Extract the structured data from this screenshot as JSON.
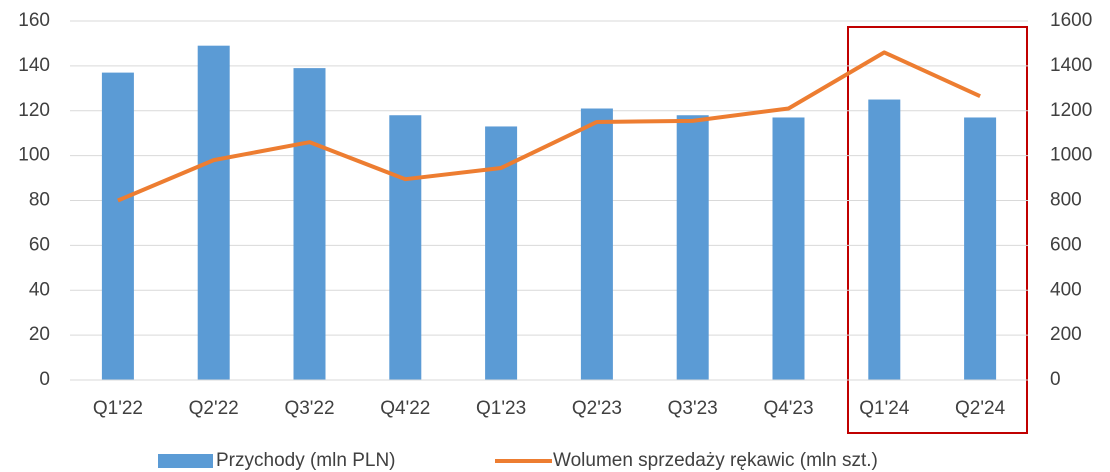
{
  "chart_data": {
    "type": "bar",
    "categories": [
      "Q1'22",
      "Q2'22",
      "Q3'22",
      "Q4'22",
      "Q1'23",
      "Q2'23",
      "Q3'23",
      "Q4'23",
      "Q1'24",
      "Q2'24"
    ],
    "series": [
      {
        "name": "Przychody (mln PLN)",
        "color": "#5b9bd5",
        "type": "bar",
        "values": [
          137,
          149,
          139,
          118,
          113,
          121,
          118,
          117,
          125,
          117
        ]
      },
      {
        "name": "Wolumen sprzedaży rękawic (mln szt.)",
        "color": "#ed7d31",
        "type": "line",
        "axis": "y2",
        "values": [
          800,
          980,
          1060,
          895,
          945,
          1150,
          1155,
          1210,
          1460,
          1265
        ]
      }
    ],
    "ylim": [
      0,
      160
    ],
    "yticks": [
      0,
      20,
      40,
      60,
      80,
      100,
      120,
      140,
      160
    ],
    "y2lim": [
      0,
      1600
    ],
    "y2ticks": [
      0,
      200,
      400,
      600,
      800,
      1000,
      1200,
      1400,
      1600
    ],
    "grid": true,
    "legend": "bottom"
  }
}
